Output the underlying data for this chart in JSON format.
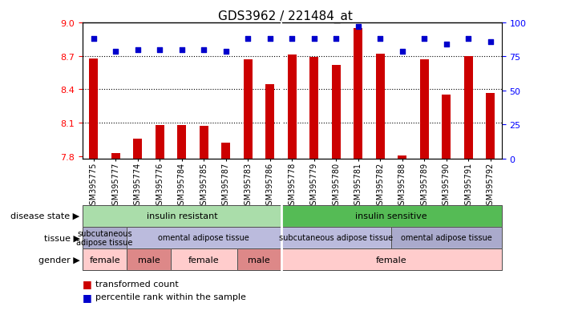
{
  "title": "GDS3962 / 221484_at",
  "samples": [
    "GSM395775",
    "GSM395777",
    "GSM395774",
    "GSM395776",
    "GSM395784",
    "GSM395785",
    "GSM395787",
    "GSM395783",
    "GSM395786",
    "GSM395778",
    "GSM395779",
    "GSM395780",
    "GSM395781",
    "GSM395782",
    "GSM395788",
    "GSM395789",
    "GSM395790",
    "GSM395791",
    "GSM395792"
  ],
  "bar_values": [
    8.68,
    7.83,
    7.96,
    8.08,
    8.08,
    8.07,
    7.92,
    8.67,
    8.45,
    8.71,
    8.69,
    8.62,
    8.95,
    8.72,
    7.81,
    8.67,
    8.35,
    8.7,
    8.37
  ],
  "percentile_values": [
    88,
    79,
    80,
    80,
    80,
    80,
    79,
    88,
    88,
    88,
    88,
    88,
    97,
    88,
    79,
    88,
    84,
    88,
    86
  ],
  "ylim_left": [
    7.78,
    9.0
  ],
  "ylim_right": [
    0,
    100
  ],
  "yticks_left": [
    7.8,
    8.1,
    8.4,
    8.7,
    9.0
  ],
  "yticks_right": [
    0,
    25,
    50,
    75,
    100
  ],
  "hlines": [
    8.1,
    8.4,
    8.7
  ],
  "bar_color": "#cc0000",
  "dot_color": "#0000cc",
  "disease_state_groups": [
    {
      "label": "insulin resistant",
      "start": 0,
      "end": 9,
      "color": "#aaddaa"
    },
    {
      "label": "insulin sensitive",
      "start": 9,
      "end": 19,
      "color": "#55bb55"
    }
  ],
  "tissue_groups": [
    {
      "label": "subcutaneous\nadipose tissue",
      "start": 0,
      "end": 2,
      "color": "#aaaacc"
    },
    {
      "label": "omental adipose tissue",
      "start": 2,
      "end": 9,
      "color": "#bbbbdd"
    },
    {
      "label": "subcutaneous adipose tissue",
      "start": 9,
      "end": 14,
      "color": "#bbbbdd"
    },
    {
      "label": "omental adipose tissue",
      "start": 14,
      "end": 19,
      "color": "#aaaacc"
    }
  ],
  "gender_groups": [
    {
      "label": "female",
      "start": 0,
      "end": 2,
      "color": "#ffcccc"
    },
    {
      "label": "male",
      "start": 2,
      "end": 4,
      "color": "#dd8888"
    },
    {
      "label": "female",
      "start": 4,
      "end": 7,
      "color": "#ffcccc"
    },
    {
      "label": "male",
      "start": 7,
      "end": 9,
      "color": "#dd8888"
    },
    {
      "label": "female",
      "start": 9,
      "end": 19,
      "color": "#ffcccc"
    }
  ],
  "row_labels": [
    "disease state",
    "tissue",
    "gender"
  ],
  "legend_items": [
    {
      "color": "#cc0000",
      "label": "transformed count"
    },
    {
      "color": "#0000cc",
      "label": "percentile rank within the sample"
    }
  ]
}
